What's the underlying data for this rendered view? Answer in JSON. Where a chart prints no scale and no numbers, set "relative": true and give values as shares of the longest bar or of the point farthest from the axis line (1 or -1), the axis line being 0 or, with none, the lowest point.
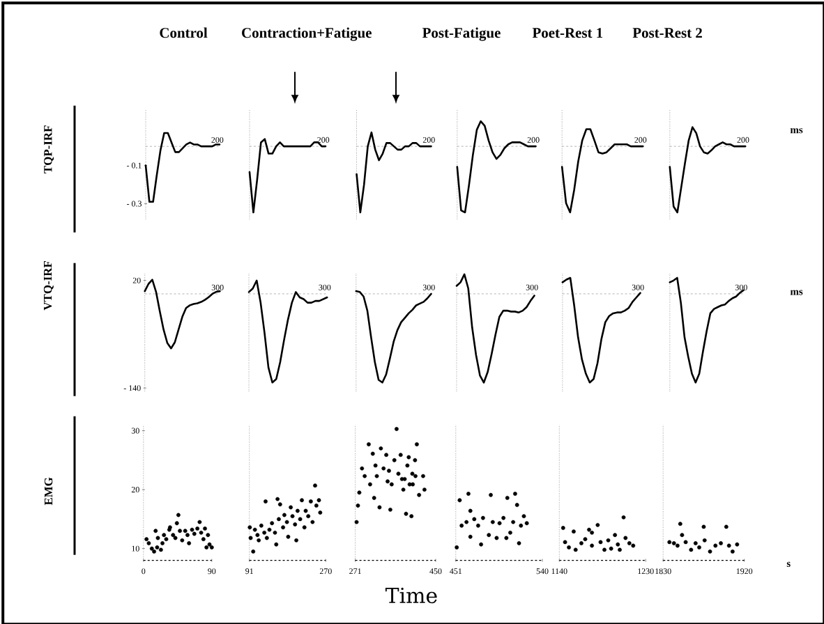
{
  "chart_data": [
    {
      "type": "line",
      "title": "Control",
      "ylabel": "TQP-IRF",
      "annotations": [
        "200"
      ],
      "color": "#000000",
      "ylim": [
        -0.38,
        0.19
      ],
      "yticks": [
        {
          "value": -0.1,
          "label": "- 0.1"
        },
        {
          "value": -0.3,
          "label": "- 0.3"
        }
      ],
      "tick_labels": "y",
      "ref_lines": [
        {
          "axis": "y",
          "value": 0,
          "color": "#808080",
          "line_style": "dashed"
        }
      ],
      "categories": [
        null,
        null,
        null,
        null,
        null,
        null,
        null,
        null,
        null,
        null,
        null,
        null,
        null,
        null,
        null,
        null,
        null,
        null,
        null,
        null,
        null
      ],
      "values": [
        -0.1,
        -0.29,
        -0.29,
        -0.15,
        -0.02,
        0.07,
        0.07,
        0.02,
        -0.03,
        -0.03,
        -0.01,
        0.01,
        0.02,
        0.01,
        0.01,
        0,
        0,
        0,
        0,
        0.01,
        0.01
      ]
    },
    {
      "type": "line",
      "title": "Contraction+Fatigue",
      "annotations": [
        "200"
      ],
      "color": "#000000",
      "relative": true,
      "ref_lines": [
        {
          "axis": "y",
          "value": 0,
          "color": "#808080",
          "line_style": "dashed"
        }
      ],
      "tick_labels": false,
      "categories": [
        null,
        null,
        null,
        null,
        null,
        null,
        null,
        null,
        null,
        null,
        null,
        null,
        null,
        null,
        null,
        null,
        null,
        null,
        null,
        null,
        null
      ],
      "values": [
        -0.39,
        -1,
        -0.5,
        0.06,
        0.11,
        -0.11,
        -0.11,
        0,
        0.06,
        0,
        0,
        0,
        0,
        0,
        0,
        0,
        0,
        0.06,
        0.06,
        0,
        0
      ]
    },
    {
      "type": "line",
      "annotations": [
        "200"
      ],
      "color": "#000000",
      "relative": true,
      "tick_labels": false,
      "categories": [
        null,
        null,
        null,
        null,
        null,
        null,
        null,
        null,
        null,
        null,
        null,
        null,
        null,
        null,
        null,
        null,
        null,
        null,
        null,
        null,
        null
      ],
      "ref_lines": [
        {
          "axis": "y",
          "value": 0,
          "color": "#808080",
          "line_style": "dashed"
        }
      ],
      "values": [
        -0.42,
        -1,
        -0.58,
        0,
        0.21,
        -0.05,
        -0.21,
        -0.11,
        0.05,
        0.05,
        0,
        -0.05,
        -0.05,
        0,
        0,
        0.05,
        0.05,
        0,
        0,
        0,
        0
      ]
    },
    {
      "type": "line",
      "title": "Post-Fatigue",
      "annotations": [
        "200"
      ],
      "color": "#000000",
      "relative": true,
      "tick_labels": false,
      "categories": [
        null,
        null,
        null,
        null,
        null,
        null,
        null,
        null,
        null,
        null,
        null,
        null,
        null,
        null,
        null,
        null,
        null,
        null,
        null,
        null,
        null
      ],
      "ref_lines": [
        {
          "axis": "y",
          "value": 0,
          "color": "#808080",
          "line_style": "dashed"
        }
      ],
      "values": [
        -0.31,
        -0.97,
        -1,
        -0.59,
        -0.13,
        0.25,
        0.38,
        0.31,
        0.09,
        -0.09,
        -0.19,
        -0.13,
        -0.03,
        0.03,
        0.06,
        0.06,
        0.06,
        0.03,
        0,
        0,
        0
      ]
    },
    {
      "type": "line",
      "title": "Poet-Rest 1",
      "annotations": [
        "200"
      ],
      "color": "#000000",
      "relative": true,
      "tick_labels": false,
      "categories": [
        null,
        null,
        null,
        null,
        null,
        null,
        null,
        null,
        null,
        null,
        null,
        null,
        null,
        null,
        null,
        null,
        null,
        null,
        null,
        null,
        null
      ],
      "ref_lines": [
        {
          "axis": "y",
          "value": 0,
          "color": "#808080",
          "line_style": "dashed"
        }
      ],
      "values": [
        -0.31,
        -0.86,
        -1,
        -0.66,
        -0.23,
        0.09,
        0.26,
        0.26,
        0.09,
        -0.09,
        -0.11,
        -0.09,
        -0.03,
        0.03,
        0.03,
        0.03,
        0.03,
        0,
        0,
        0,
        0
      ]
    },
    {
      "type": "line",
      "title": "Post-Rest 2",
      "annotations": [
        "200",
        "ms"
      ],
      "color": "#000000",
      "relative": true,
      "tick_labels": false,
      "categories": [
        null,
        null,
        null,
        null,
        null,
        null,
        null,
        null,
        null,
        null,
        null,
        null,
        null,
        null,
        null,
        null,
        null,
        null,
        null,
        null,
        null
      ],
      "ref_lines": [
        {
          "axis": "y",
          "value": 0,
          "color": "#808080",
          "line_style": "dashed"
        }
      ],
      "values": [
        -0.31,
        -0.91,
        -1,
        -0.63,
        -0.26,
        0.09,
        0.29,
        0.2,
        0,
        -0.09,
        -0.11,
        -0.06,
        0,
        0.03,
        0.06,
        0.03,
        0.03,
        0,
        0,
        0,
        0
      ]
    },
    {
      "type": "line",
      "ylabel": "VTQ-IRF",
      "annotations": [
        "300"
      ],
      "color": "#000000",
      "ylim": [
        -145,
        30
      ],
      "yticks": [
        {
          "value": 20,
          "label": "20"
        },
        {
          "value": -140,
          "label": "- 140"
        }
      ],
      "tick_labels": "y",
      "ref_lines": [
        {
          "axis": "y",
          "value": 0,
          "color": "#808080",
          "line_style": "dashed"
        }
      ],
      "categories": [
        null,
        null,
        null,
        null,
        null,
        null,
        null,
        null,
        null,
        null,
        null,
        null,
        null,
        null,
        null,
        null,
        null,
        null,
        null,
        null,
        null
      ],
      "values": [
        4,
        15,
        21,
        3,
        -26,
        -53,
        -73,
        -81,
        -72,
        -53,
        -34,
        -21,
        -17,
        -15,
        -14,
        -12,
        -9,
        -5,
        0,
        3,
        4
      ]
    },
    {
      "type": "line",
      "annotations": [
        "300"
      ],
      "color": "#000000",
      "relative": true,
      "tick_labels": false,
      "categories": [
        null,
        null,
        null,
        null,
        null,
        null,
        null,
        null,
        null,
        null,
        null,
        null,
        null,
        null,
        null,
        null,
        null,
        null,
        null,
        null,
        null
      ],
      "ref_lines": [
        {
          "axis": "y",
          "value": 0,
          "color": "#808080",
          "line_style": "dashed"
        }
      ],
      "values": [
        0.02,
        0.06,
        0.15,
        -0.1,
        -0.44,
        -0.83,
        -1,
        -0.96,
        -0.77,
        -0.52,
        -0.29,
        -0.1,
        0.02,
        -0.04,
        -0.06,
        -0.1,
        -0.1,
        -0.08,
        -0.08,
        -0.06,
        -0.04
      ]
    },
    {
      "type": "line",
      "annotations": [
        "300"
      ],
      "color": "#000000",
      "relative": true,
      "tick_labels": false,
      "categories": [
        null,
        null,
        null,
        null,
        null,
        null,
        null,
        null,
        null,
        null,
        null,
        null,
        null,
        null,
        null,
        null,
        null,
        null,
        null,
        null,
        null
      ],
      "ref_lines": [
        {
          "axis": "y",
          "value": 0,
          "color": "#808080",
          "line_style": "dashed"
        }
      ],
      "values": [
        0.03,
        0.02,
        -0.03,
        -0.19,
        -0.49,
        -0.77,
        -0.97,
        -1,
        -0.91,
        -0.73,
        -0.54,
        -0.41,
        -0.32,
        -0.27,
        -0.22,
        -0.18,
        -0.13,
        -0.11,
        -0.09,
        -0.05,
        0
      ]
    },
    {
      "type": "line",
      "annotations": [
        "300"
      ],
      "color": "#000000",
      "relative": true,
      "tick_labels": false,
      "categories": [
        null,
        null,
        null,
        null,
        null,
        null,
        null,
        null,
        null,
        null,
        null,
        null,
        null,
        null,
        null,
        null,
        null,
        null,
        null,
        null,
        null
      ],
      "ref_lines": [
        {
          "axis": "y",
          "value": 0,
          "color": "#808080",
          "line_style": "dashed"
        }
      ],
      "values": [
        0.09,
        0.13,
        0.22,
        0.06,
        -0.38,
        -0.69,
        -0.92,
        -1,
        -0.88,
        -0.68,
        -0.46,
        -0.26,
        -0.19,
        -0.19,
        -0.2,
        -0.2,
        -0.21,
        -0.19,
        -0.15,
        -0.08,
        -0.02
      ]
    },
    {
      "type": "line",
      "annotations": [
        "300"
      ],
      "color": "#000000",
      "relative": true,
      "tick_labels": false,
      "categories": [
        null,
        null,
        null,
        null,
        null,
        null,
        null,
        null,
        null,
        null,
        null,
        null,
        null,
        null,
        null,
        null,
        null,
        null,
        null,
        null,
        null
      ],
      "ref_lines": [
        {
          "axis": "y",
          "value": 0,
          "color": "#808080",
          "line_style": "dashed"
        }
      ],
      "values": [
        0.13,
        0.16,
        0.18,
        -0.13,
        -0.49,
        -0.74,
        -0.9,
        -1,
        -0.96,
        -0.78,
        -0.51,
        -0.32,
        -0.25,
        -0.22,
        -0.21,
        -0.21,
        -0.19,
        -0.16,
        -0.09,
        -0.04,
        0.01
      ]
    },
    {
      "type": "line",
      "annotations": [
        "300",
        "ms"
      ],
      "color": "#000000",
      "relative": true,
      "tick_labels": false,
      "categories": [
        null,
        null,
        null,
        null,
        null,
        null,
        null,
        null,
        null,
        null,
        null,
        null,
        null,
        null,
        null,
        null,
        null,
        null,
        null,
        null,
        null
      ],
      "ref_lines": [
        {
          "axis": "y",
          "value": 0,
          "color": "#808080",
          "line_style": "dashed"
        }
      ],
      "values": [
        0.13,
        0.15,
        0.18,
        -0.1,
        -0.49,
        -0.71,
        -0.9,
        -1,
        -0.9,
        -0.65,
        -0.42,
        -0.22,
        -0.17,
        -0.15,
        -0.13,
        -0.12,
        -0.08,
        -0.05,
        -0.03,
        0.01,
        0.04
      ]
    },
    {
      "type": "scatter",
      "ylabel": "EMG",
      "marker": "circle",
      "color": "#000000",
      "xlim": [
        0,
        90
      ],
      "ylim": [
        8,
        31
      ],
      "xticks": [
        0,
        90
      ],
      "yticks": [
        10,
        20,
        30
      ],
      "x": [
        4,
        7,
        11,
        14,
        18,
        19,
        16,
        23,
        25,
        27,
        30,
        34,
        35,
        39,
        42,
        44,
        46,
        48,
        51,
        55,
        58,
        60,
        64,
        67,
        71,
        74,
        76,
        79,
        81,
        85,
        87,
        90,
        83
      ],
      "values": [
        11.6,
        10.9,
        10,
        9.5,
        10.2,
        11.8,
        13,
        9.8,
        10.9,
        12.3,
        11.6,
        13.2,
        13.6,
        12.3,
        11.8,
        14.3,
        15.7,
        13,
        11.4,
        13,
        12.3,
        10.9,
        13.2,
        12.5,
        13.4,
        14.5,
        12.7,
        11.6,
        13.4,
        12.3,
        10.7,
        10.2,
        10.2
      ]
    },
    {
      "type": "scatter",
      "marker": "circle",
      "color": "#000000",
      "xlim": [
        91,
        270
      ],
      "ylim": [
        8,
        31
      ],
      "xticks": [
        91,
        270
      ],
      "tick_labels": "x",
      "x": [
        92,
        94,
        100,
        104,
        110,
        113,
        119,
        126,
        129,
        132,
        138,
        144,
        151,
        154,
        157,
        163,
        160,
        170,
        173,
        179,
        182,
        188,
        192,
        198,
        201,
        204,
        210,
        214,
        220,
        223,
        229,
        235,
        239,
        245,
        248,
        254,
        257
      ],
      "values": [
        13.6,
        11.8,
        9.5,
        13.2,
        12.3,
        11.4,
        13.9,
        12.7,
        18,
        11.8,
        13.2,
        14.3,
        12.7,
        10.7,
        18.4,
        17.5,
        15,
        13.6,
        15.7,
        14.5,
        12,
        17,
        15.5,
        14.1,
        11.4,
        16.4,
        15,
        18.2,
        13.6,
        16.4,
        15.5,
        18,
        14.5,
        20.7,
        17.3,
        18.2,
        16.1
      ]
    },
    {
      "type": "scatter",
      "xlabel": "Time",
      "marker": "circle",
      "color": "#000000",
      "xlim": [
        271,
        450
      ],
      "ylim": [
        8,
        31
      ],
      "xticks": [
        271,
        450
      ],
      "tick_labels": "x",
      "x": [
        274,
        277,
        280,
        286,
        292,
        301,
        310,
        304,
        313,
        319,
        325,
        328,
        334,
        340,
        343,
        349,
        352,
        358,
        363,
        367,
        372,
        378,
        381,
        384,
        390,
        396,
        399,
        405,
        408,
        392,
        398,
        404,
        413,
        422,
        425,
        316,
        346,
        387,
        375
      ],
      "values": [
        14.5,
        17.3,
        19.5,
        23.6,
        22.3,
        27.7,
        26.1,
        20.9,
        18.6,
        22.3,
        17,
        27,
        23.6,
        25.9,
        21.4,
        16.6,
        20.9,
        25,
        30.3,
        22.7,
        25.9,
        20,
        21.8,
        15.9,
        25.5,
        15.5,
        20.9,
        22.3,
        27.7,
        20.9,
        22.7,
        25,
        19.1,
        22.3,
        20,
        24.1,
        23.2,
        24.1,
        21.8
      ]
    },
    {
      "type": "scatter",
      "marker": "circle",
      "color": "#000000",
      "xlim": [
        451,
        540
      ],
      "ylim": [
        8,
        31
      ],
      "xticks": [
        451,
        540
      ],
      "tick_labels": "x",
      "x": [
        452,
        455,
        464,
        466,
        457,
        462,
        466,
        470,
        474,
        477,
        479,
        485,
        487,
        489,
        493,
        496,
        500,
        503,
        504,
        507,
        510,
        512,
        514,
        516,
        518,
        521,
        524
      ],
      "values": [
        10.2,
        18.2,
        19.3,
        16.4,
        13.9,
        14.5,
        12,
        15,
        13.9,
        10.7,
        15.2,
        12.3,
        19.1,
        14.5,
        11.8,
        14.3,
        15.2,
        11.8,
        18.6,
        12.7,
        14.5,
        19.3,
        17.4,
        10.9,
        13.9,
        15.5,
        14.3
      ]
    },
    {
      "type": "scatter",
      "marker": "circle",
      "color": "#000000",
      "xlim": [
        1140,
        1230
      ],
      "ylim": [
        8,
        31
      ],
      "xticks": [
        1140,
        1230
      ],
      "tick_labels": "x",
      "x": [
        1144,
        1155,
        1146,
        1150,
        1157,
        1163,
        1167,
        1171,
        1174,
        1180,
        1183,
        1187,
        1191,
        1194,
        1198,
        1201,
        1203,
        1207,
        1209,
        1213,
        1217,
        1174
      ],
      "values": [
        13.5,
        12.9,
        11.1,
        10.2,
        9.8,
        10.9,
        11.6,
        13.2,
        10.5,
        14,
        11.1,
        9.8,
        11.4,
        10,
        12.3,
        10.7,
        9.8,
        15.3,
        11.8,
        10.9,
        10.5,
        12.7
      ]
    },
    {
      "type": "scatter",
      "annotations": [
        "s"
      ],
      "marker": "circle",
      "color": "#000000",
      "xlim": [
        1830,
        1920
      ],
      "ylim": [
        8,
        31
      ],
      "xticks": [
        1830,
        1920
      ],
      "tick_labels": "x",
      "x": [
        1837,
        1849,
        1851,
        1842,
        1855,
        1861,
        1866,
        1870,
        1875,
        1876,
        1882,
        1888,
        1894,
        1900,
        1903,
        1907,
        1912,
        1846
      ],
      "values": [
        11.1,
        14.2,
        12.3,
        10.9,
        11.1,
        9.8,
        10.9,
        10.2,
        13.7,
        11.4,
        9.5,
        10.5,
        10.9,
        13.7,
        10.5,
        9.5,
        10.7,
        10.5
      ]
    }
  ]
}
